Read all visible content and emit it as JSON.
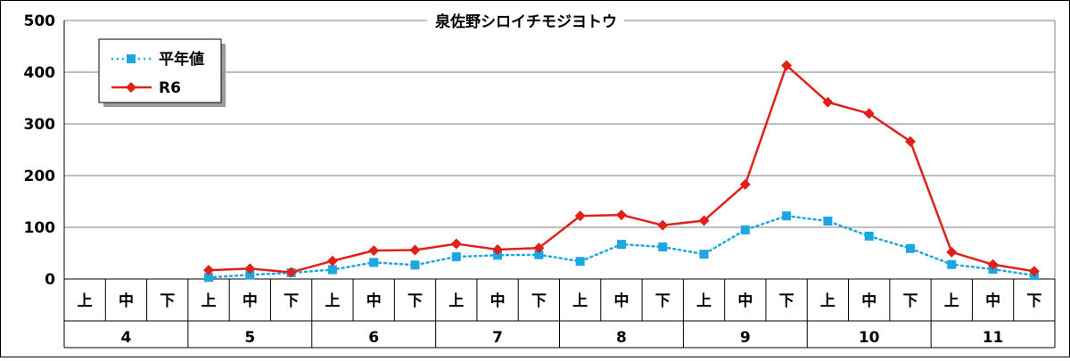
{
  "chart_data": {
    "type": "line",
    "title": "泉佐野シロイチモジヨトウ",
    "ylim": [
      0,
      500
    ],
    "yticks": [
      0,
      100,
      200,
      300,
      400,
      500
    ],
    "grid": true,
    "legend_position": "top-left",
    "x_subcategories": [
      "上",
      "中",
      "下",
      "上",
      "中",
      "下",
      "上",
      "中",
      "下",
      "上",
      "中",
      "下",
      "上",
      "中",
      "下",
      "上",
      "中",
      "下",
      "上",
      "中",
      "下",
      "上",
      "中",
      "下"
    ],
    "x_groups": [
      "4",
      "5",
      "6",
      "7",
      "8",
      "9",
      "10",
      "11"
    ],
    "series": [
      {
        "name": "平年値",
        "color": "#1ca7e0",
        "line_style": "dotted",
        "marker": "square",
        "values": [
          null,
          null,
          null,
          3,
          8,
          12,
          18,
          32,
          27,
          43,
          46,
          47,
          34,
          67,
          62,
          48,
          95,
          122,
          112,
          83,
          59,
          28,
          19,
          7
        ]
      },
      {
        "name": "R6",
        "color": "#e0201a",
        "line_style": "solid",
        "marker": "diamond",
        "values": [
          null,
          null,
          null,
          17,
          20,
          13,
          35,
          55,
          56,
          68,
          57,
          60,
          122,
          124,
          104,
          113,
          183,
          413,
          342,
          320,
          266,
          52,
          28,
          15
        ]
      }
    ]
  }
}
